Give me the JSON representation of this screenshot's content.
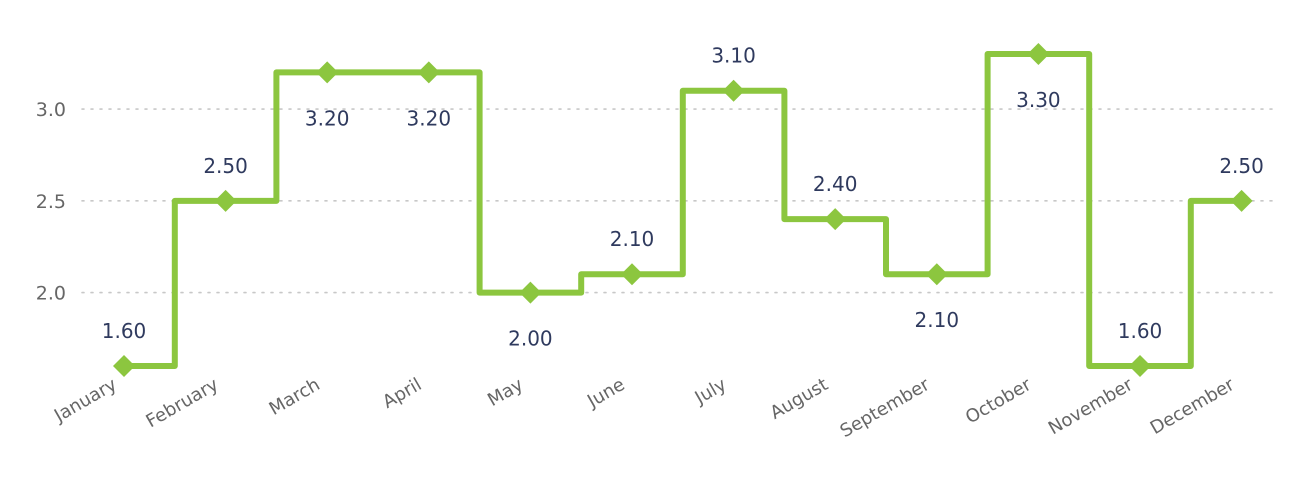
{
  "chart_data": {
    "type": "line",
    "step": "center",
    "categories": [
      "January",
      "February",
      "March",
      "April",
      "May",
      "June",
      "July",
      "August",
      "September",
      "October",
      "November",
      "December"
    ],
    "values": [
      1.6,
      2.5,
      3.2,
      3.2,
      2.0,
      2.1,
      3.1,
      2.4,
      2.1,
      3.3,
      1.6,
      2.5
    ],
    "data_labels": [
      "1.60",
      "2.50",
      "3.20",
      "3.20",
      "2.00",
      "2.10",
      "3.10",
      "2.40",
      "2.10",
      "3.30",
      "1.60",
      "2.50"
    ],
    "y_ticks": [
      "2.0",
      "2.5",
      "3.0"
    ],
    "ylim": [
      1.6,
      3.3
    ],
    "grid": "horizontal-dotted",
    "legend": "none",
    "line_color": "#8cc63f",
    "label_color": "#2f3a5e",
    "axis_label_color": "#666666"
  }
}
